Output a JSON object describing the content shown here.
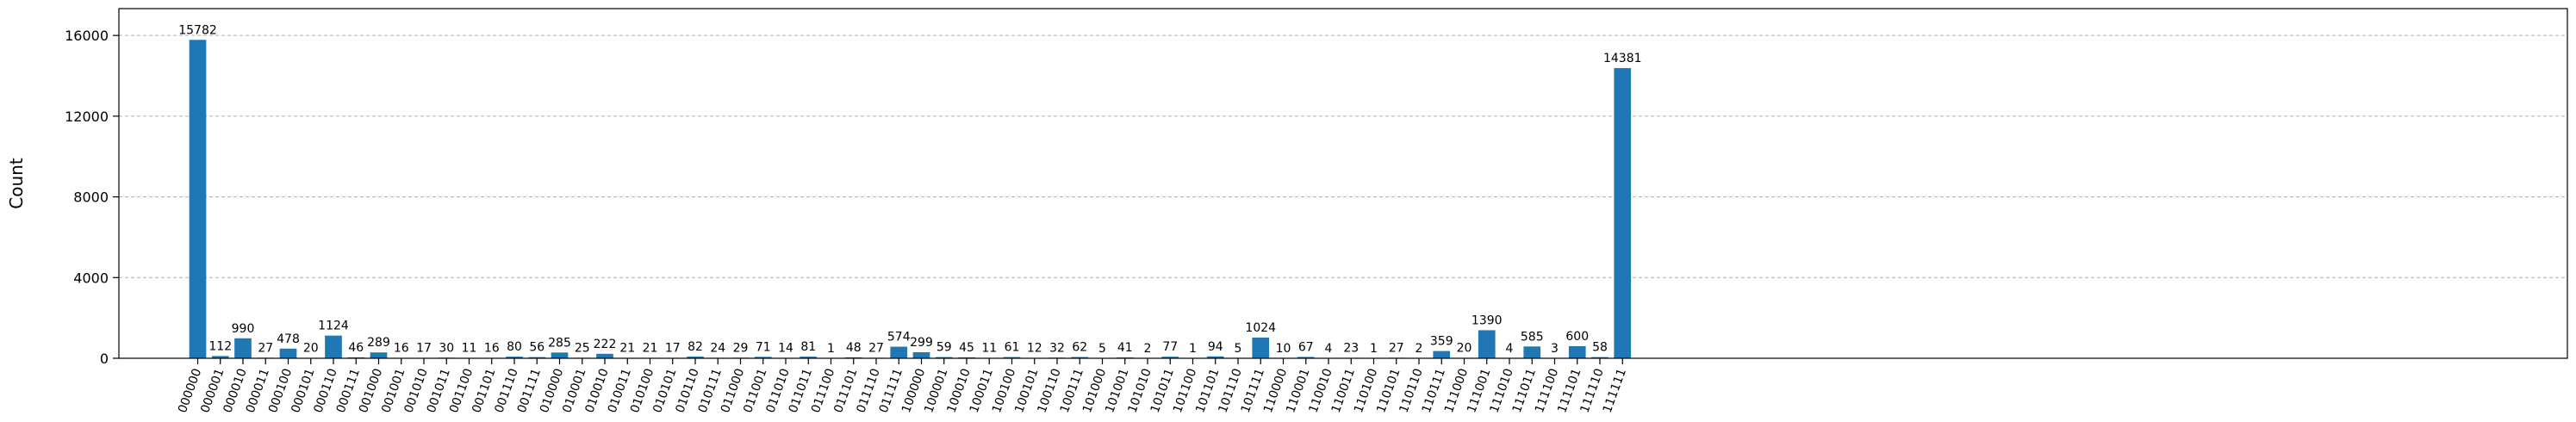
{
  "chart_data": {
    "type": "bar",
    "ylabel": "Count",
    "ylim": [
      0,
      17330
    ],
    "yticks": [
      0,
      4000,
      8000,
      12000,
      16000
    ],
    "grid": "y-dashed",
    "bar_color": "#1f77b4",
    "categories": [
      "000000",
      "000001",
      "000010",
      "000011",
      "000100",
      "000101",
      "000110",
      "000111",
      "001000",
      "001001",
      "001010",
      "001011",
      "001100",
      "001101",
      "001110",
      "001111",
      "010000",
      "010001",
      "010010",
      "010011",
      "010100",
      "010101",
      "010110",
      "010111",
      "011000",
      "011001",
      "011010",
      "011011",
      "011100",
      "011101",
      "011110",
      "011111",
      "100000",
      "100001",
      "100010",
      "100011",
      "100100",
      "100101",
      "100110",
      "100111",
      "101000",
      "101001",
      "101010",
      "101011",
      "101100",
      "101101",
      "101110",
      "101111",
      "110000",
      "110001",
      "110010",
      "110011",
      "110100",
      "110101",
      "110110",
      "110111",
      "111000",
      "111001",
      "111010",
      "111011",
      "111100",
      "111101",
      "111110",
      "111111"
    ],
    "values": [
      15782,
      112,
      990,
      27,
      478,
      20,
      1124,
      46,
      289,
      16,
      17,
      30,
      11,
      16,
      80,
      56,
      285,
      25,
      222,
      21,
      21,
      17,
      82,
      24,
      29,
      71,
      14,
      81,
      1,
      48,
      27,
      574,
      299,
      59,
      45,
      11,
      61,
      12,
      32,
      62,
      5,
      41,
      2,
      77,
      1,
      94,
      5,
      1024,
      10,
      67,
      4,
      23,
      1,
      27,
      2,
      359,
      20,
      1390,
      4,
      585,
      3,
      600,
      58,
      14381
    ]
  }
}
